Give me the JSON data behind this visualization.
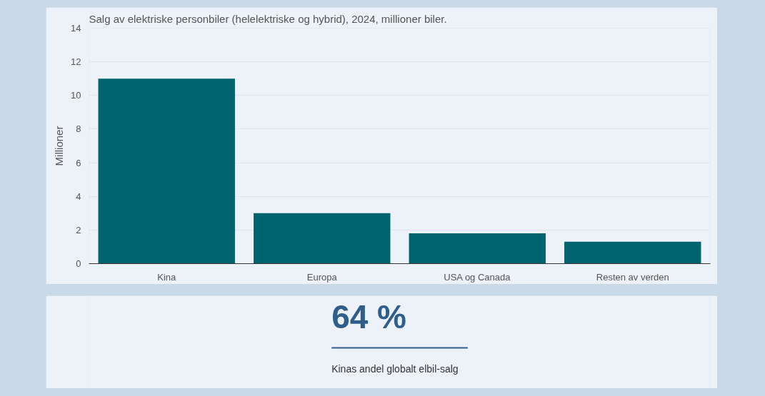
{
  "chart_data": [
    {
      "type": "bar",
      "title": "Salg av elektriske personbiler (helelektriske og hybrid), 2024, millioner biler.",
      "ylabel": "Millioner",
      "categories": [
        "Kina",
        "Europa",
        "USA og Canada",
        "Resten av verden"
      ],
      "values": [
        11.0,
        3.0,
        1.8,
        1.3
      ],
      "color": "#00636e",
      "ylim": [
        0,
        14
      ],
      "yticks": [
        0,
        2,
        4,
        6,
        8,
        10,
        12,
        14
      ],
      "grid": "y"
    },
    {
      "type": "other",
      "annotations": [
        "64 %",
        "Kinas andel globalt elbil-salg"
      ]
    }
  ]
}
